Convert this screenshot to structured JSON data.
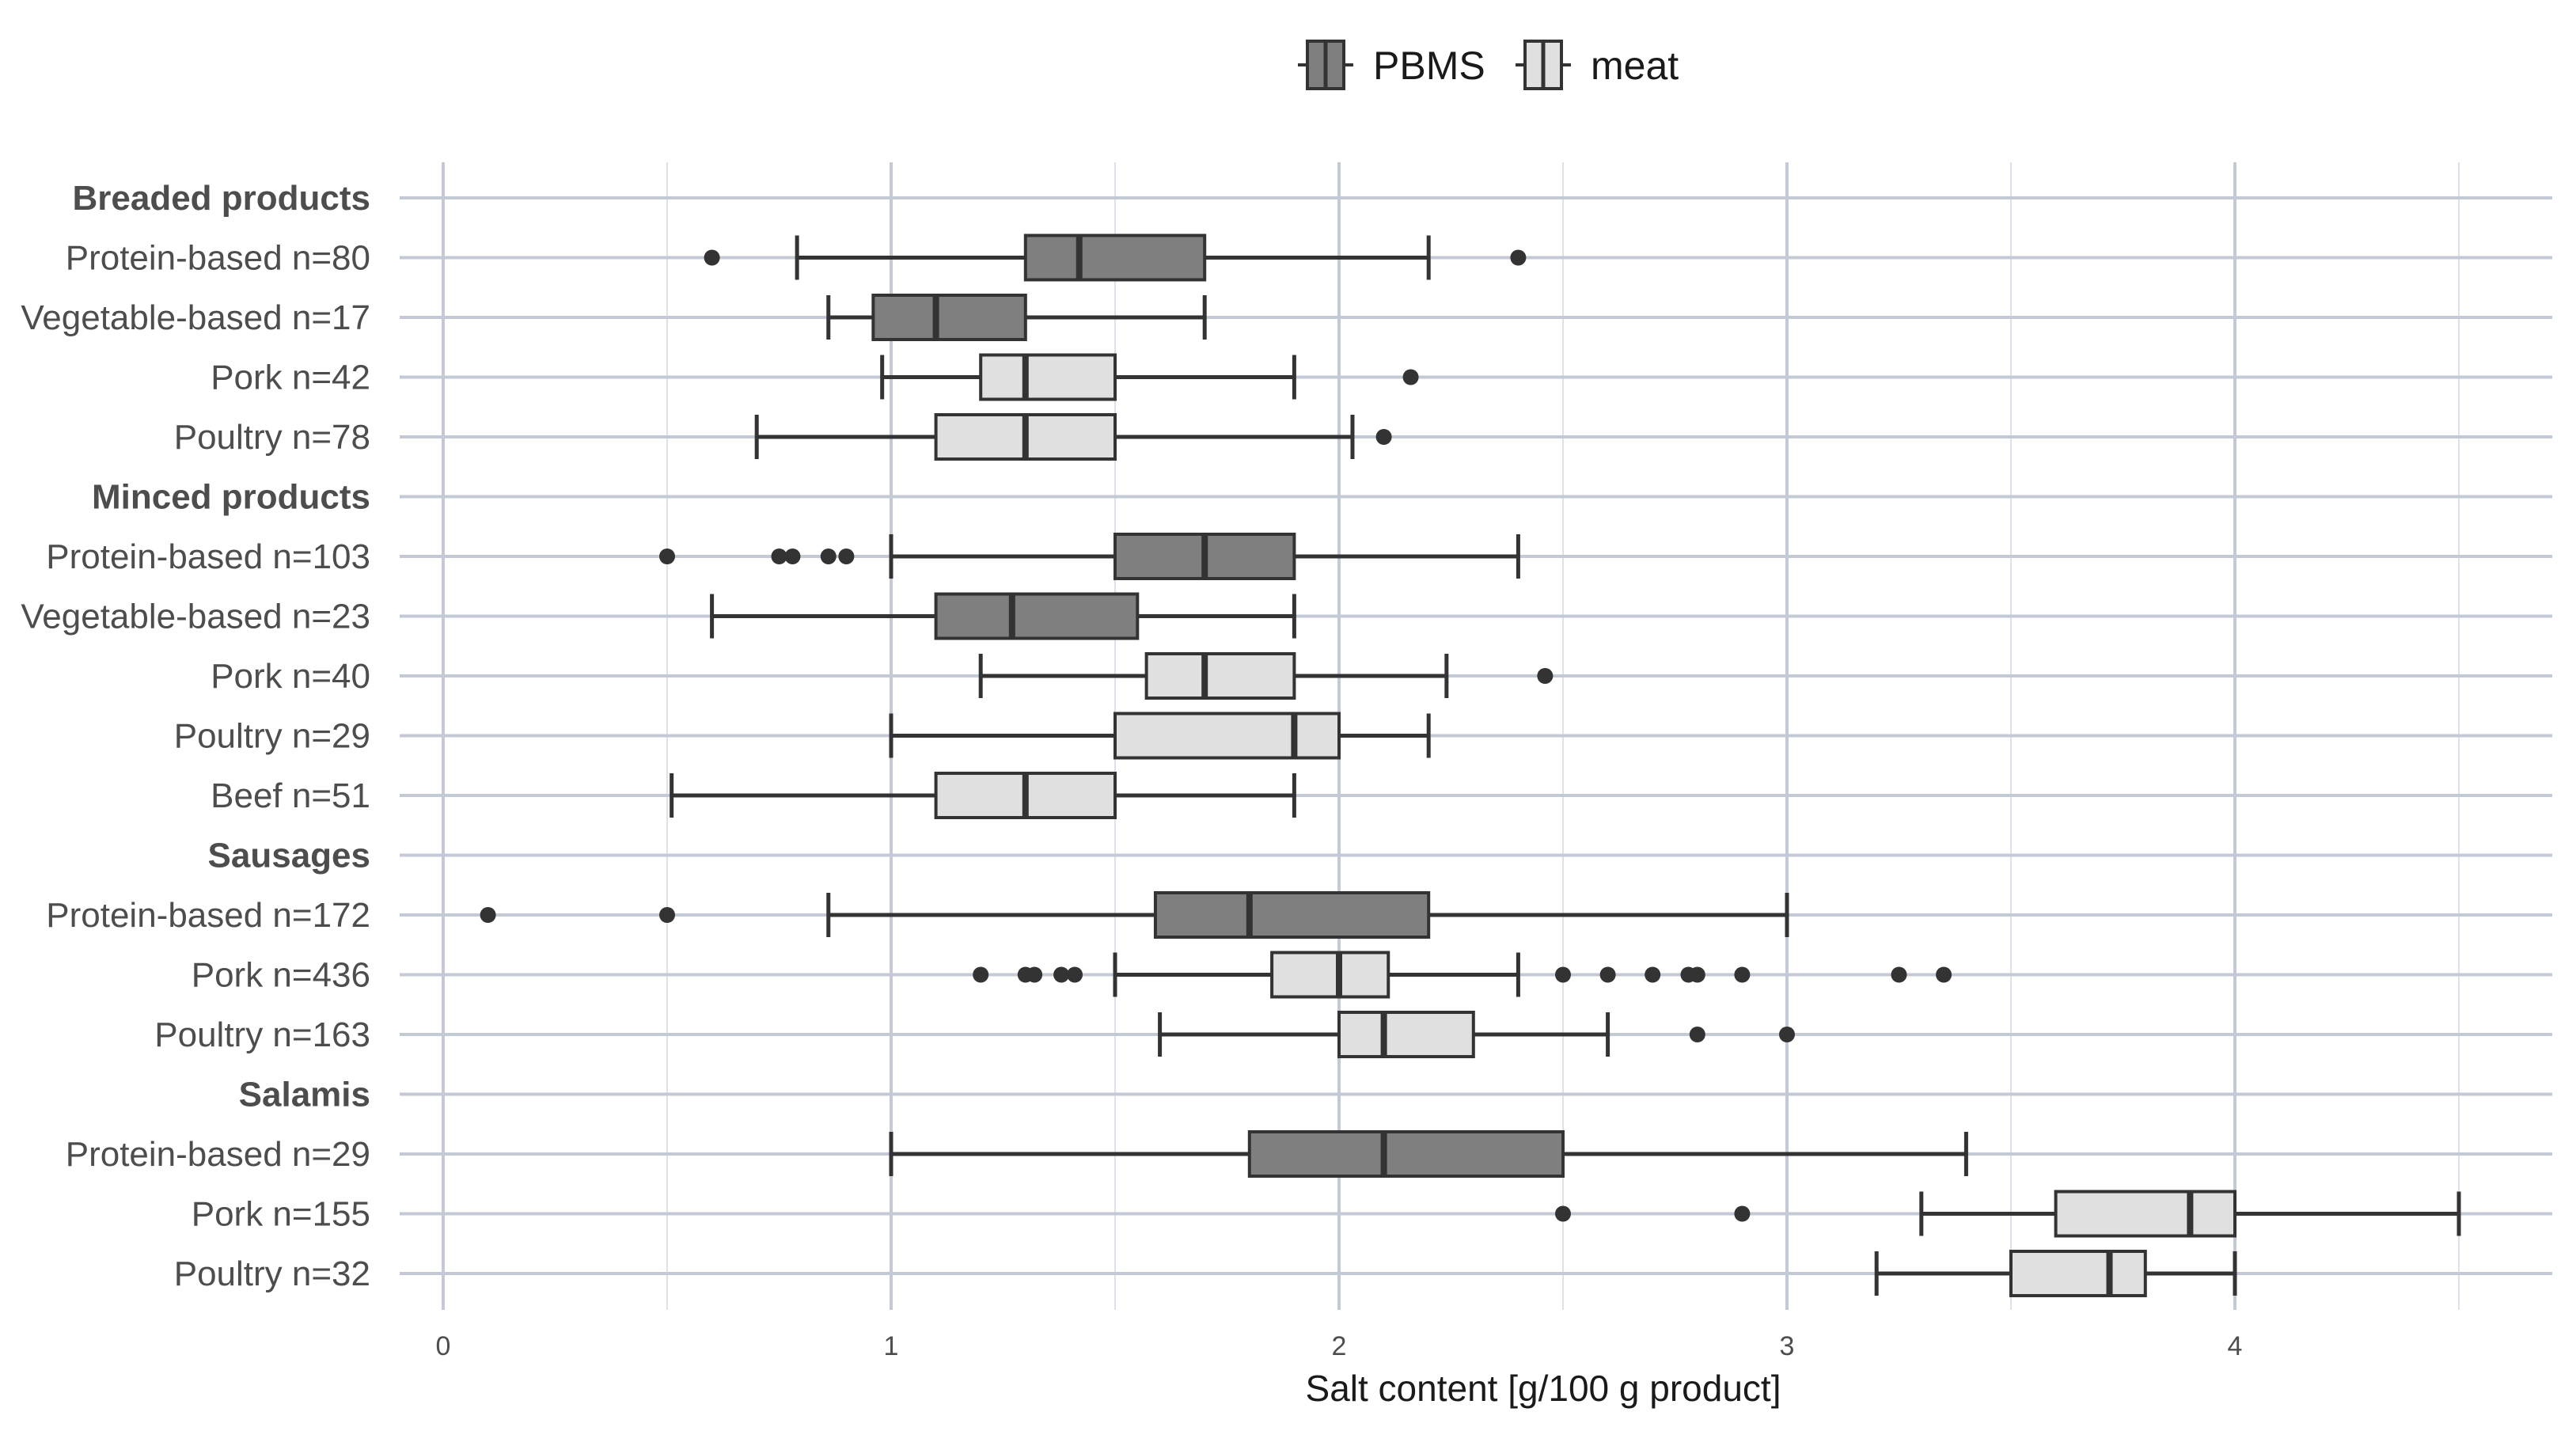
{
  "chart_data": {
    "type": "boxplot",
    "orientation": "horizontal",
    "xlabel": "Salt content [g/100 g product]",
    "xlim": [
      -0.1,
      4.75
    ],
    "xticks": [
      0,
      1,
      2,
      3,
      4
    ],
    "grid": true,
    "legend": {
      "placement": "top-center",
      "entries": [
        {
          "name": "PBMS",
          "color": "#7f7f7f"
        },
        {
          "name": "meat",
          "color": "#e0e0e0"
        }
      ]
    },
    "rows": [
      {
        "label": "Breaded products",
        "header": true
      },
      {
        "label": "Protein-based n=80",
        "group": "PBMS",
        "whisker_low": 0.79,
        "q1": 1.3,
        "median": 1.42,
        "q3": 1.7,
        "whisker_high": 2.2,
        "outliers": [
          0.6,
          2.4
        ]
      },
      {
        "label": "Vegetable-based n=17",
        "group": "PBMS",
        "whisker_low": 0.86,
        "q1": 0.96,
        "median": 1.1,
        "q3": 1.3,
        "whisker_high": 1.7,
        "outliers": []
      },
      {
        "label": "Pork n=42",
        "group": "meat",
        "whisker_low": 0.98,
        "q1": 1.2,
        "median": 1.3,
        "q3": 1.5,
        "whisker_high": 1.9,
        "outliers": [
          2.16
        ]
      },
      {
        "label": "Poultry n=78",
        "group": "meat",
        "whisker_low": 0.7,
        "q1": 1.1,
        "median": 1.3,
        "q3": 1.5,
        "whisker_high": 2.03,
        "outliers": [
          2.1
        ]
      },
      {
        "label": "Minced products",
        "header": true
      },
      {
        "label": "Protein-based n=103",
        "group": "PBMS",
        "whisker_low": 1.0,
        "q1": 1.5,
        "median": 1.7,
        "q3": 1.9,
        "whisker_high": 2.4,
        "outliers": [
          0.5,
          0.75,
          0.78,
          0.86,
          0.9
        ]
      },
      {
        "label": "Vegetable-based n=23",
        "group": "PBMS",
        "whisker_low": 0.6,
        "q1": 1.1,
        "median": 1.27,
        "q3": 1.55,
        "whisker_high": 1.9,
        "outliers": []
      },
      {
        "label": "Pork n=40",
        "group": "meat",
        "whisker_low": 1.2,
        "q1": 1.57,
        "median": 1.7,
        "q3": 1.9,
        "whisker_high": 2.24,
        "outliers": [
          2.46
        ]
      },
      {
        "label": "Poultry n=29",
        "group": "meat",
        "whisker_low": 1.0,
        "q1": 1.5,
        "median": 1.9,
        "q3": 2.0,
        "whisker_high": 2.2,
        "outliers": []
      },
      {
        "label": "Beef n=51",
        "group": "meat",
        "whisker_low": 0.51,
        "q1": 1.1,
        "median": 1.3,
        "q3": 1.5,
        "whisker_high": 1.9,
        "outliers": []
      },
      {
        "label": "Sausages",
        "header": true
      },
      {
        "label": "Protein-based n=172",
        "group": "PBMS",
        "whisker_low": 0.86,
        "q1": 1.59,
        "median": 1.8,
        "q3": 2.2,
        "whisker_high": 3.0,
        "outliers": [
          0.1,
          0.5
        ]
      },
      {
        "label": "Pork n=436",
        "group": "meat",
        "whisker_low": 1.5,
        "q1": 1.85,
        "median": 2.0,
        "q3": 2.11,
        "whisker_high": 2.4,
        "outliers": [
          1.2,
          1.3,
          1.32,
          1.38,
          1.41,
          2.5,
          2.6,
          2.7,
          2.78,
          2.8,
          2.9,
          3.25,
          3.35
        ]
      },
      {
        "label": "Poultry n=163",
        "group": "meat",
        "whisker_low": 1.6,
        "q1": 2.0,
        "median": 2.1,
        "q3": 2.3,
        "whisker_high": 2.6,
        "outliers": [
          2.8,
          3.0
        ]
      },
      {
        "label": "Salamis",
        "header": true
      },
      {
        "label": "Protein-based n=29",
        "group": "PBMS",
        "whisker_low": 1.0,
        "q1": 1.8,
        "median": 2.1,
        "q3": 2.5,
        "whisker_high": 3.4,
        "outliers": []
      },
      {
        "label": "Pork n=155",
        "group": "meat",
        "whisker_low": 3.3,
        "q1": 3.6,
        "median": 3.9,
        "q3": 4.0,
        "whisker_high": 4.5,
        "outliers": [
          2.5,
          2.9
        ]
      },
      {
        "label": "Poultry n=32",
        "group": "meat",
        "whisker_low": 3.2,
        "q1": 3.5,
        "median": 3.72,
        "q3": 3.8,
        "whisker_high": 4.0,
        "outliers": []
      }
    ]
  }
}
